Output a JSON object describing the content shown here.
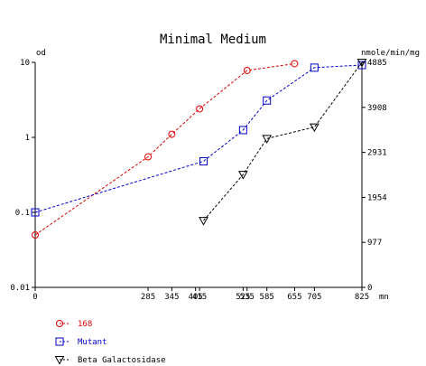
{
  "chart_data": {
    "type": "line",
    "title": "Minimal Medium",
    "xlabel": "",
    "x_unit": "mn",
    "y_left_unit": "od",
    "y_right_unit": "nmole/min/mg",
    "x_ticks": [
      "0",
      "285",
      "345",
      "405",
      "415",
      "525",
      "535",
      "585",
      "655",
      "705",
      "825"
    ],
    "y_left_ticks": [
      "0.01",
      "0.1",
      "1",
      "10"
    ],
    "y_right_ticks": [
      "0",
      "977",
      "1954",
      "2931",
      "3908",
      "4885"
    ],
    "x_range": [
      0,
      825
    ],
    "y_left_range": [
      0.01,
      10
    ],
    "y_left_scale": "log",
    "y_right_range": [
      0,
      4885
    ],
    "grid": false,
    "legend_position": "bottom-left",
    "series": [
      {
        "name": "168",
        "color": "#dd0000",
        "marker": "circle",
        "axis": "left",
        "x": [
          0,
          285,
          345,
          415,
          535,
          655
        ],
        "y": [
          0.05,
          0.55,
          1.1,
          2.4,
          7.8,
          9.6
        ]
      },
      {
        "name": "Mutant",
        "color": "#0000cc",
        "marker": "square",
        "axis": "left",
        "x": [
          0,
          425,
          525,
          585,
          705,
          825
        ],
        "y": [
          0.1,
          0.48,
          1.25,
          3.1,
          8.5,
          9.2
        ]
      },
      {
        "name": "Beta Galactosidase",
        "color": "#000000",
        "marker": "triangle-down",
        "axis": "right",
        "x": [
          425,
          525,
          585,
          705,
          825
        ],
        "y": [
          1450,
          2450,
          3230,
          3480,
          4885
        ]
      }
    ]
  }
}
